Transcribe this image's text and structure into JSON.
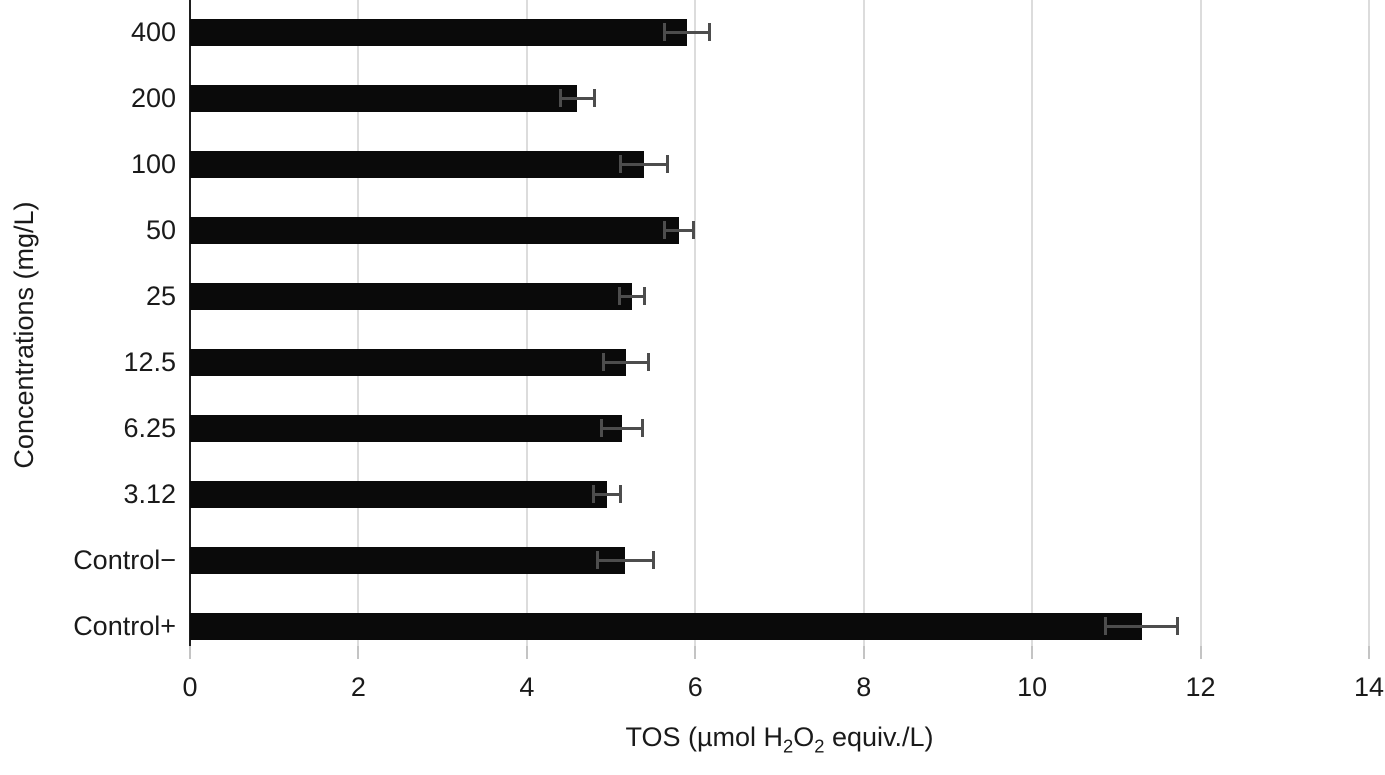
{
  "chart_data": {
    "type": "bar",
    "orientation": "horizontal",
    "title": "",
    "xlabel": "TOS (µmol H2O2 equiv./L)",
    "xlabel_segments": [
      {
        "text": "TOS (µmol H",
        "sub": false
      },
      {
        "text": "2",
        "sub": true
      },
      {
        "text": "O",
        "sub": false
      },
      {
        "text": "2",
        "sub": true
      },
      {
        "text": " equiv./L)",
        "sub": false
      }
    ],
    "ylabel": "Concentrations (mg/L)",
    "categories": [
      "400",
      "200",
      "100",
      "50",
      "25",
      "12.5",
      "6.25",
      "3.12",
      "Control−",
      "Control+"
    ],
    "values": [
      5.9,
      4.6,
      5.39,
      5.81,
      5.25,
      5.18,
      5.13,
      4.95,
      5.17,
      11.3
    ],
    "errors": [
      0.27,
      0.2,
      0.28,
      0.17,
      0.15,
      0.27,
      0.24,
      0.16,
      0.33,
      0.43
    ],
    "xlim": [
      0,
      14
    ],
    "xticks": [
      0,
      2,
      4,
      6,
      8,
      10,
      12,
      14
    ],
    "grid": "vertical-light",
    "legend": "none",
    "colors": {
      "bar": "#0a0a0a",
      "error": "#4d4d4d",
      "gridline": "#dcdcdc",
      "axis": "#1f1f1f",
      "tick": "#c4c4c4",
      "text": "#1a1a1a"
    }
  }
}
